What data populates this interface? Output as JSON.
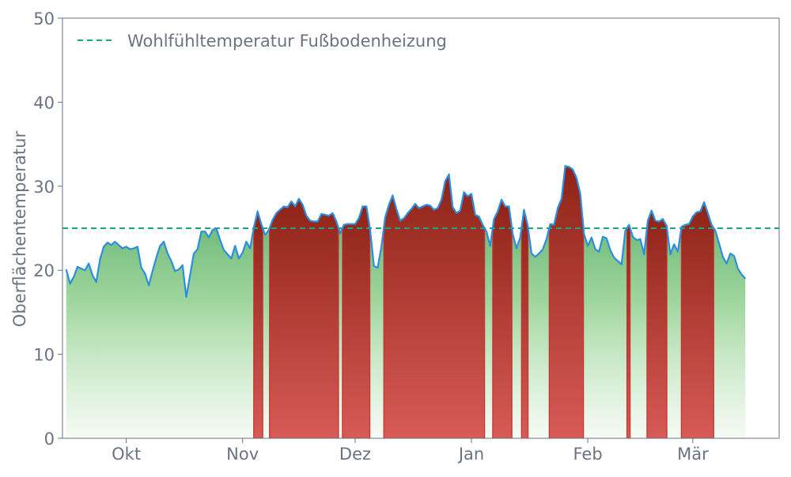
{
  "chart_data": {
    "type": "area",
    "title": "",
    "xlabel": "",
    "ylabel": "Oberflächentemperatur",
    "ylim": [
      0,
      50
    ],
    "yticks": [
      0,
      10,
      20,
      30,
      40,
      50
    ],
    "xlim": [
      "2022-09-14",
      "2023-03-24"
    ],
    "xticks": [
      {
        "date": "2022-10-01",
        "label": "Okt"
      },
      {
        "date": "2022-11-01",
        "label": "Nov"
      },
      {
        "date": "2022-12-01",
        "label": "Dez"
      },
      {
        "date": "2023-01-01",
        "label": "Jan"
      },
      {
        "date": "2023-02-01",
        "label": "Feb"
      },
      {
        "date": "2023-03-01",
        "label": "Mär"
      }
    ],
    "grid": false,
    "legend": {
      "position": "top-left",
      "entries": [
        "Wohlfühltemperatur Fußbodenheizung"
      ]
    },
    "threshold": {
      "name": "Wohlfühltemperatur Fußbodenheizung",
      "value": 25
    },
    "series": [
      {
        "start_date": "2022-09-15",
        "step_days": 1,
        "values": [
          20.1,
          18.4,
          19.2,
          20.4,
          20.2,
          20.0,
          20.8,
          19.4,
          18.6,
          21.3,
          22.8,
          23.3,
          23.0,
          23.4,
          23.0,
          22.6,
          22.8,
          22.5,
          22.6,
          22.8,
          20.3,
          19.6,
          18.2,
          19.9,
          21.5,
          22.9,
          23.4,
          22.0,
          21.1,
          19.9,
          20.1,
          20.6,
          16.8,
          19.4,
          22.0,
          22.5,
          24.6,
          24.6,
          23.9,
          24.8,
          25.0,
          23.6,
          22.4,
          21.9,
          21.4,
          22.9,
          21.4,
          22.1,
          23.4,
          22.6,
          25.1,
          27.0,
          25.5,
          24.2,
          24.8,
          26.0,
          26.8,
          27.2,
          27.6,
          27.5,
          28.2,
          27.6,
          28.5,
          27.8,
          26.5,
          25.9,
          25.8,
          25.8,
          26.7,
          26.6,
          26.5,
          26.8,
          25.8,
          24.4,
          25.4,
          25.5,
          25.5,
          25.5,
          26.2,
          27.6,
          27.6,
          24.8,
          20.5,
          20.3,
          22.8,
          26.3,
          27.8,
          28.9,
          27.3,
          25.9,
          26.2,
          26.8,
          27.3,
          27.9,
          27.4,
          27.6,
          27.8,
          27.7,
          27.2,
          27.4,
          28.4,
          30.6,
          31.4,
          27.5,
          26.8,
          27.1,
          29.3,
          28.8,
          29.1,
          26.6,
          26.4,
          25.4,
          24.6,
          22.9,
          26.1,
          27.0,
          28.4,
          27.6,
          27.6,
          24.3,
          22.6,
          23.9,
          27.2,
          25.3,
          22.0,
          21.6,
          22.0,
          22.5,
          23.7,
          25.5,
          25.4,
          27.4,
          28.5,
          32.4,
          32.3,
          32.0,
          31.0,
          29.1,
          24.3,
          22.9,
          23.9,
          22.5,
          22.2,
          24.0,
          23.8,
          22.4,
          21.5,
          21.1,
          20.7,
          24.7,
          25.4,
          24.0,
          23.6,
          23.7,
          21.9,
          25.9,
          27.1,
          25.9,
          25.8,
          26.1,
          25.3,
          21.9,
          23.1,
          22.2,
          25.2,
          25.4,
          25.5,
          26.4,
          26.9,
          27.0,
          28.1,
          26.8,
          25.4,
          24.7,
          23.2,
          21.6,
          20.8,
          22.0,
          21.7,
          20.2,
          19.5,
          19.0
        ]
      }
    ]
  }
}
